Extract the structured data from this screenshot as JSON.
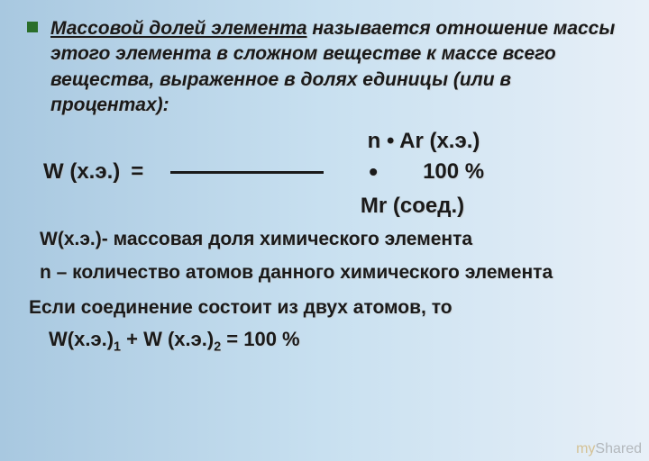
{
  "definition": {
    "term": "Массовой долей элемента",
    "rest": " называется отношение массы этого элемента в сложном веществе к массе всего вещества, выраженное в долях единицы (или в процентах):"
  },
  "formula": {
    "numerator": "n • Ar (х.э.)",
    "lhs": "W (х.э.)",
    "eq": "=",
    "dot": "•",
    "percent": "100 %",
    "denominator": "Mr  (соед.)"
  },
  "legend": {
    "w": "W(х.э.)- массовая доля химического элемента",
    "n": "n – количество атомов данного химического элемента"
  },
  "condition": "Если соединение состоит из двух атомов, то",
  "sum": {
    "w1_base": "W(х.э.)",
    "w1_sub": "1",
    "plus": "   +  ",
    "w2_base": "W (х.э.)",
    "w2_sub": "2",
    "rhs": "  = 100 %"
  },
  "watermark": {
    "my": "my",
    "shared": "Shared"
  }
}
